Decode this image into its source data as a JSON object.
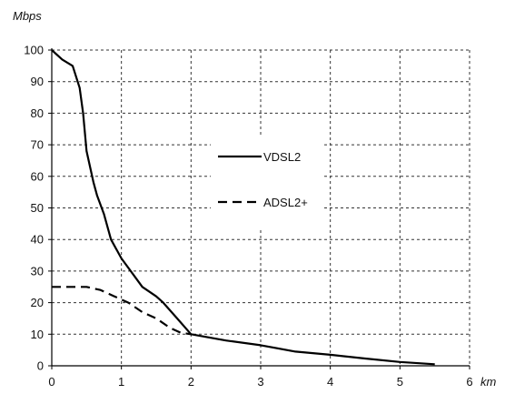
{
  "chart_data": {
    "type": "line",
    "title": "",
    "ylabel": "Mbps",
    "xlabel": "km",
    "xlim": [
      0,
      6
    ],
    "ylim": [
      0,
      100
    ],
    "x_ticks": [
      "0",
      "1",
      "2",
      "3",
      "4",
      "5",
      "6"
    ],
    "y_ticks": [
      "0",
      "10",
      "20",
      "30",
      "40",
      "50",
      "60",
      "70",
      "80",
      "90",
      "100"
    ],
    "grid": true,
    "grid_style": "dashed",
    "legend_position": "center-right",
    "series": [
      {
        "name": "VDSL2",
        "line_style": "solid",
        "color": "#000000",
        "points": [
          [
            0,
            100
          ],
          [
            0.15,
            97
          ],
          [
            0.3,
            95
          ],
          [
            0.4,
            88
          ],
          [
            0.45,
            80
          ],
          [
            0.5,
            68
          ],
          [
            0.6,
            58
          ],
          [
            0.65,
            54
          ],
          [
            0.75,
            48
          ],
          [
            0.85,
            40
          ],
          [
            1.0,
            34
          ],
          [
            1.2,
            28
          ],
          [
            1.3,
            25
          ],
          [
            1.5,
            22
          ],
          [
            1.6,
            20
          ],
          [
            1.8,
            15
          ],
          [
            2.0,
            10
          ],
          [
            2.5,
            8
          ],
          [
            3.0,
            6.5
          ],
          [
            3.5,
            4.5
          ],
          [
            4.0,
            3.5
          ],
          [
            4.5,
            2.3
          ],
          [
            5.0,
            1.2
          ],
          [
            5.5,
            0.5
          ]
        ]
      },
      {
        "name": "ADSL2+",
        "line_style": "dashed",
        "color": "#000000",
        "points": [
          [
            0,
            25
          ],
          [
            0.3,
            25
          ],
          [
            0.5,
            25
          ],
          [
            0.7,
            24
          ],
          [
            0.9,
            22
          ],
          [
            1.1,
            20
          ],
          [
            1.3,
            17
          ],
          [
            1.5,
            15
          ],
          [
            1.7,
            12
          ],
          [
            1.85,
            10.5
          ],
          [
            2.0,
            10
          ]
        ]
      }
    ]
  }
}
